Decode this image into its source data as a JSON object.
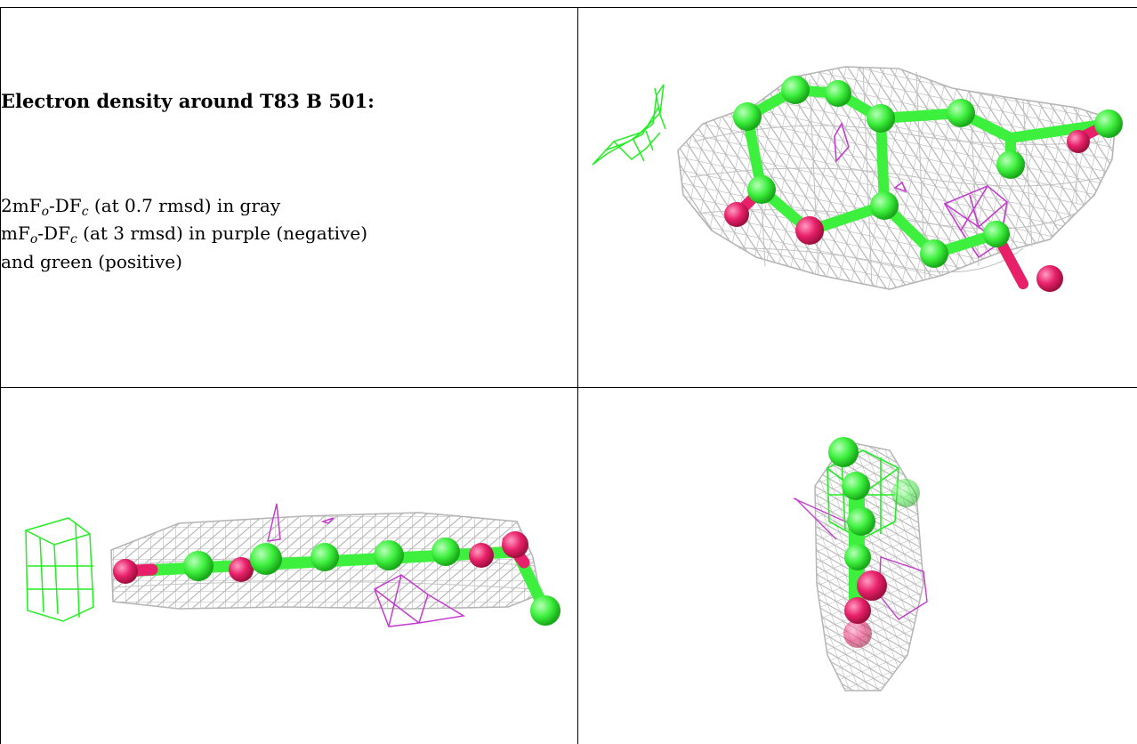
{
  "caption": {
    "title": "Electron density around T83 B 501:",
    "map1_prefix": "2mF",
    "map1_sub_o": "o",
    "map1_mid": "-DF",
    "map1_sub_c": "c",
    "map1_rest": " (at 0.7 rmsd) in gray",
    "map2_prefix": "mF",
    "map2_sub_o": "o",
    "map2_mid": "-DF",
    "map2_sub_c": "c",
    "map2_rest": " (at 3 rmsd) in purple (negative)",
    "map2_rest2": "and green (positive)"
  },
  "colors": {
    "mesh_gray": "#b5b5b5",
    "carbon_green": "#3ef03e",
    "oxygen_pink": "#e8206a",
    "negative_purple": "#c43ccf",
    "positive_green": "#22ee22"
  },
  "panels": [
    {
      "view": "top",
      "description_icon": "molecule-top-view"
    },
    {
      "view": "side",
      "description_icon": "molecule-side-view"
    },
    {
      "view": "end",
      "description_icon": "molecule-end-view"
    }
  ]
}
